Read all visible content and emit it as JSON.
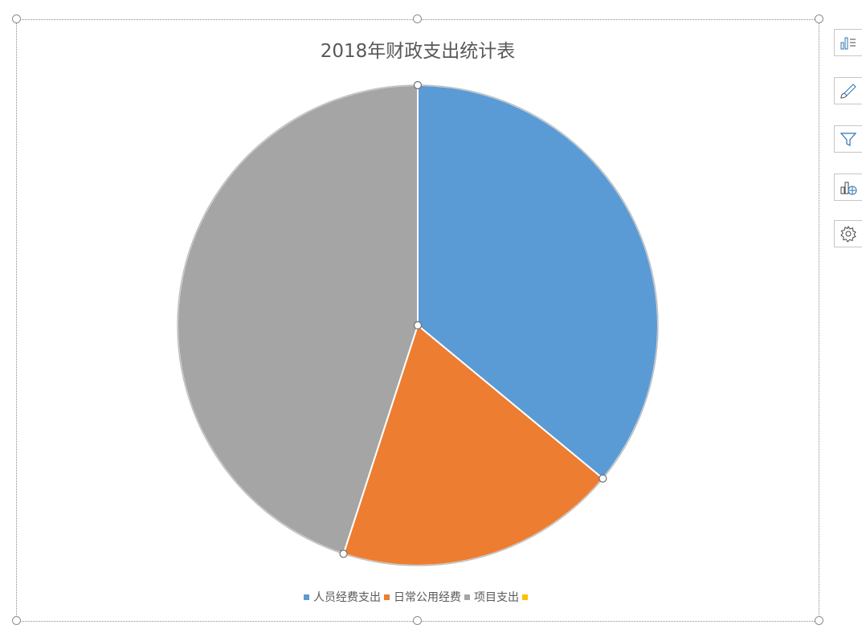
{
  "chart_data": {
    "type": "pie",
    "title": "2018年财政支出统计表",
    "categories": [
      "人员经费支出",
      "日常公用经费",
      "项目支出",
      ""
    ],
    "values": [
      36,
      19,
      45,
      0
    ],
    "colors": [
      "#5b9bd5",
      "#ed7d31",
      "#a5a5a5",
      "#ffc000"
    ],
    "legend_position": "bottom",
    "start_angle_deg": 0
  },
  "toolbar": {
    "buttons": [
      {
        "icon": "chart-elements-icon"
      },
      {
        "icon": "chart-styles-icon"
      },
      {
        "icon": "chart-filters-icon"
      },
      {
        "icon": "chart-layout-icon"
      },
      {
        "icon": "chart-settings-icon"
      }
    ]
  }
}
